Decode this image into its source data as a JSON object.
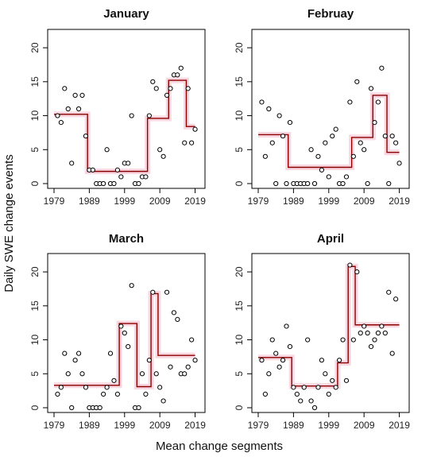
{
  "figure": {
    "ylabel": "Daily SWE change events",
    "xlabel": "Mean change segments"
  },
  "chart_data": [
    {
      "type": "scatter",
      "title": "January",
      "xlim": [
        1979,
        2020
      ],
      "ylim": [
        0,
        22
      ],
      "xticks": [
        "1979",
        "1989",
        "1999",
        "2009",
        "2019"
      ],
      "yticks": [
        "0",
        "5",
        "10",
        "15",
        "20"
      ],
      "colors": {
        "points": "#000000",
        "segments": "#8b0000",
        "band": "#f4b6c8"
      },
      "points": [
        [
          1980,
          10
        ],
        [
          1981,
          9
        ],
        [
          1982,
          14
        ],
        [
          1983,
          11
        ],
        [
          1984,
          3
        ],
        [
          1985,
          13
        ],
        [
          1986,
          11
        ],
        [
          1987,
          13
        ],
        [
          1988,
          7
        ],
        [
          1989,
          2
        ],
        [
          1990,
          2
        ],
        [
          1991,
          0
        ],
        [
          1992,
          0
        ],
        [
          1993,
          0
        ],
        [
          1994,
          5
        ],
        [
          1995,
          0
        ],
        [
          1996,
          0
        ],
        [
          1997,
          2
        ],
        [
          1998,
          1
        ],
        [
          1999,
          3
        ],
        [
          2000,
          3
        ],
        [
          2001,
          10
        ],
        [
          2002,
          0
        ],
        [
          2003,
          0
        ],
        [
          2004,
          1
        ],
        [
          2005,
          1
        ],
        [
          2006,
          10
        ],
        [
          2007,
          15
        ],
        [
          2008,
          14
        ],
        [
          2009,
          5
        ],
        [
          2010,
          4
        ],
        [
          2011,
          13
        ],
        [
          2012,
          14
        ],
        [
          2013,
          16
        ],
        [
          2014,
          16
        ],
        [
          2015,
          17
        ],
        [
          2016,
          6
        ],
        [
          2017,
          14
        ],
        [
          2018,
          6
        ],
        [
          2019,
          8
        ]
      ],
      "segments": [
        {
          "x": [
            1979,
            1988.5
          ],
          "y": 10.2
        },
        {
          "x": [
            1988.5,
            2005.5
          ],
          "y": 1.8
        },
        {
          "x": [
            2005.5,
            2011.5
          ],
          "y": 9.6
        },
        {
          "x": [
            2011.5,
            2016.5
          ],
          "y": 15.2
        },
        {
          "x": [
            2016.5,
            2019
          ],
          "y": 8.4
        }
      ]
    },
    {
      "type": "scatter",
      "title": "Februay",
      "xlim": [
        1979,
        2020
      ],
      "ylim": [
        0,
        22
      ],
      "xticks": [
        "1979",
        "1989",
        "1999",
        "2009",
        "2019"
      ],
      "yticks": [
        "0",
        "5",
        "10",
        "15",
        "20"
      ],
      "colors": {
        "points": "#000000",
        "segments": "#8b0000",
        "band": "#f4b6c8"
      },
      "points": [
        [
          1980,
          12
        ],
        [
          1981,
          4
        ],
        [
          1982,
          11
        ],
        [
          1983,
          6
        ],
        [
          1984,
          0
        ],
        [
          1985,
          10
        ],
        [
          1986,
          7
        ],
        [
          1987,
          0
        ],
        [
          1988,
          9
        ],
        [
          1989,
          0
        ],
        [
          1990,
          0
        ],
        [
          1991,
          0
        ],
        [
          1992,
          0
        ],
        [
          1993,
          0
        ],
        [
          1994,
          5
        ],
        [
          1995,
          0
        ],
        [
          1996,
          4
        ],
        [
          1997,
          2
        ],
        [
          1998,
          6
        ],
        [
          1999,
          1
        ],
        [
          2000,
          7
        ],
        [
          2001,
          8
        ],
        [
          2002,
          0
        ],
        [
          2003,
          0
        ],
        [
          2004,
          1
        ],
        [
          2005,
          12
        ],
        [
          2006,
          4
        ],
        [
          2007,
          15
        ],
        [
          2008,
          6
        ],
        [
          2009,
          5
        ],
        [
          2010,
          0
        ],
        [
          2011,
          14
        ],
        [
          2012,
          9
        ],
        [
          2013,
          12
        ],
        [
          2014,
          17
        ],
        [
          2015,
          7
        ],
        [
          2016,
          0
        ],
        [
          2017,
          7
        ],
        [
          2018,
          6
        ],
        [
          2019,
          3
        ]
      ],
      "segments": [
        {
          "x": [
            1979,
            1987.5
          ],
          "y": 7.2
        },
        {
          "x": [
            1987.5,
            2005.5
          ],
          "y": 2.4
        },
        {
          "x": [
            2005.5,
            2011.5
          ],
          "y": 6.8
        },
        {
          "x": [
            2011.5,
            2015.5
          ],
          "y": 13.0
        },
        {
          "x": [
            2015.5,
            2019
          ],
          "y": 4.6
        }
      ]
    },
    {
      "type": "scatter",
      "title": "March",
      "xlim": [
        1979,
        2020
      ],
      "ylim": [
        0,
        22
      ],
      "xticks": [
        "1979",
        "1989",
        "1999",
        "2009",
        "2019"
      ],
      "yticks": [
        "0",
        "5",
        "10",
        "15",
        "20"
      ],
      "colors": {
        "points": "#000000",
        "segments": "#8b0000",
        "band": "#f4b6c8"
      },
      "points": [
        [
          1980,
          2
        ],
        [
          1981,
          3
        ],
        [
          1982,
          8
        ],
        [
          1983,
          5
        ],
        [
          1984,
          0
        ],
        [
          1985,
          7
        ],
        [
          1986,
          8
        ],
        [
          1987,
          5
        ],
        [
          1988,
          3
        ],
        [
          1989,
          0
        ],
        [
          1990,
          0
        ],
        [
          1991,
          0
        ],
        [
          1992,
          0
        ],
        [
          1993,
          2
        ],
        [
          1994,
          3
        ],
        [
          1995,
          8
        ],
        [
          1996,
          4
        ],
        [
          1997,
          2
        ],
        [
          1998,
          12
        ],
        [
          1999,
          11
        ],
        [
          2000,
          9
        ],
        [
          2001,
          18
        ],
        [
          2002,
          0
        ],
        [
          2003,
          0
        ],
        [
          2004,
          5
        ],
        [
          2005,
          2
        ],
        [
          2006,
          7
        ],
        [
          2007,
          17
        ],
        [
          2008,
          5
        ],
        [
          2009,
          3
        ],
        [
          2010,
          1
        ],
        [
          2011,
          17
        ],
        [
          2012,
          6
        ],
        [
          2013,
          14
        ],
        [
          2014,
          13
        ],
        [
          2015,
          5
        ],
        [
          2016,
          5
        ],
        [
          2017,
          6
        ],
        [
          2018,
          10
        ],
        [
          2019,
          7
        ]
      ],
      "segments": [
        {
          "x": [
            1979,
            1997.5
          ],
          "y": 3.3
        },
        {
          "x": [
            1997.5,
            2002.5
          ],
          "y": 12.4
        },
        {
          "x": [
            2002.5,
            2006.5
          ],
          "y": 3.1
        },
        {
          "x": [
            2006.5,
            2008.5
          ],
          "y": 16.8
        },
        {
          "x": [
            2008.5,
            2019
          ],
          "y": 7.7
        }
      ]
    },
    {
      "type": "scatter",
      "title": "April",
      "xlim": [
        1979,
        2020
      ],
      "ylim": [
        0,
        22
      ],
      "xticks": [
        "1979",
        "1989",
        "1999",
        "2009",
        "2019"
      ],
      "yticks": [
        "0",
        "5",
        "10",
        "15",
        "20"
      ],
      "colors": {
        "points": "#000000",
        "segments": "#8b0000",
        "band": "#f4b6c8"
      },
      "points": [
        [
          1980,
          7
        ],
        [
          1981,
          2
        ],
        [
          1982,
          5
        ],
        [
          1983,
          10
        ],
        [
          1984,
          8
        ],
        [
          1985,
          6
        ],
        [
          1986,
          7
        ],
        [
          1987,
          12
        ],
        [
          1988,
          9
        ],
        [
          1989,
          3
        ],
        [
          1990,
          2
        ],
        [
          1991,
          1
        ],
        [
          1992,
          3
        ],
        [
          1993,
          10
        ],
        [
          1994,
          1
        ],
        [
          1995,
          0
        ],
        [
          1996,
          3
        ],
        [
          1997,
          7
        ],
        [
          1998,
          5
        ],
        [
          1999,
          2
        ],
        [
          2000,
          4
        ],
        [
          2001,
          3
        ],
        [
          2002,
          7
        ],
        [
          2003,
          10
        ],
        [
          2004,
          4
        ],
        [
          2005,
          21
        ],
        [
          2006,
          10
        ],
        [
          2007,
          20
        ],
        [
          2008,
          11
        ],
        [
          2009,
          12
        ],
        [
          2010,
          11
        ],
        [
          2011,
          9
        ],
        [
          2012,
          10
        ],
        [
          2013,
          11
        ],
        [
          2014,
          12
        ],
        [
          2015,
          11
        ],
        [
          2016,
          17
        ],
        [
          2017,
          8
        ],
        [
          2018,
          16
        ]
      ],
      "segments": [
        {
          "x": [
            1979,
            1988.5
          ],
          "y": 7.4
        },
        {
          "x": [
            1988.5,
            2001.5
          ],
          "y": 3.2
        },
        {
          "x": [
            2001.5,
            2004.5
          ],
          "y": 6.6
        },
        {
          "x": [
            2004.5,
            2006.5
          ],
          "y": 20.8
        },
        {
          "x": [
            2006.5,
            2019
          ],
          "y": 12.2
        }
      ]
    }
  ]
}
